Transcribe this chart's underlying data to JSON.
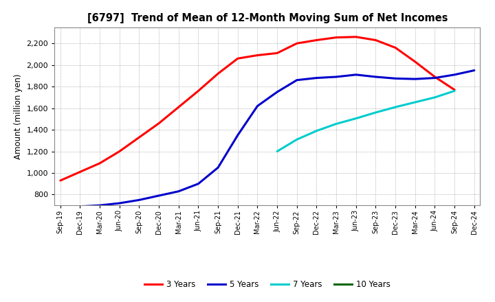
{
  "title": "[6797]  Trend of Mean of 12-Month Moving Sum of Net Incomes",
  "ylabel": "Amount (million yen)",
  "ylim": [
    700,
    2350
  ],
  "yticks": [
    800,
    1000,
    1200,
    1400,
    1600,
    1800,
    2000,
    2200
  ],
  "background_color": "#ffffff",
  "x_labels": [
    "Sep-19",
    "Dec-19",
    "Mar-20",
    "Jun-20",
    "Sep-20",
    "Dec-20",
    "Mar-21",
    "Jun-21",
    "Sep-21",
    "Dec-21",
    "Mar-22",
    "Jun-22",
    "Sep-22",
    "Dec-22",
    "Mar-23",
    "Jun-23",
    "Sep-23",
    "Dec-23",
    "Mar-24",
    "Jun-24",
    "Sep-24",
    "Dec-24"
  ],
  "series": {
    "3 Years": {
      "color": "#ff0000",
      "values": [
        930,
        1010,
        1090,
        1200,
        1330,
        1460,
        1610,
        1760,
        1920,
        2060,
        2090,
        2110,
        2200,
        2230,
        2255,
        2260,
        2230,
        2160,
        2030,
        1890,
        1770,
        null
      ]
    },
    "5 Years": {
      "color": "#0000cc",
      "values": [
        null,
        690,
        700,
        720,
        750,
        790,
        830,
        900,
        1050,
        1350,
        1620,
        1750,
        1860,
        1880,
        1890,
        1910,
        1890,
        1875,
        1870,
        1880,
        1910,
        1950
      ]
    },
    "7 Years": {
      "color": "#00cccc",
      "values": [
        null,
        null,
        null,
        null,
        null,
        null,
        null,
        null,
        null,
        null,
        null,
        1200,
        1310,
        1390,
        1455,
        1505,
        1560,
        1610,
        1655,
        1700,
        1760,
        null
      ]
    },
    "10 Years": {
      "color": "#006600",
      "values": [
        null,
        null,
        null,
        null,
        null,
        null,
        null,
        null,
        null,
        null,
        null,
        null,
        null,
        null,
        null,
        null,
        null,
        null,
        null,
        null,
        null,
        null
      ]
    }
  },
  "legend_labels": [
    "3 Years",
    "5 Years",
    "7 Years",
    "10 Years"
  ],
  "legend_colors": [
    "#ff0000",
    "#0000cc",
    "#00cccc",
    "#006600"
  ]
}
